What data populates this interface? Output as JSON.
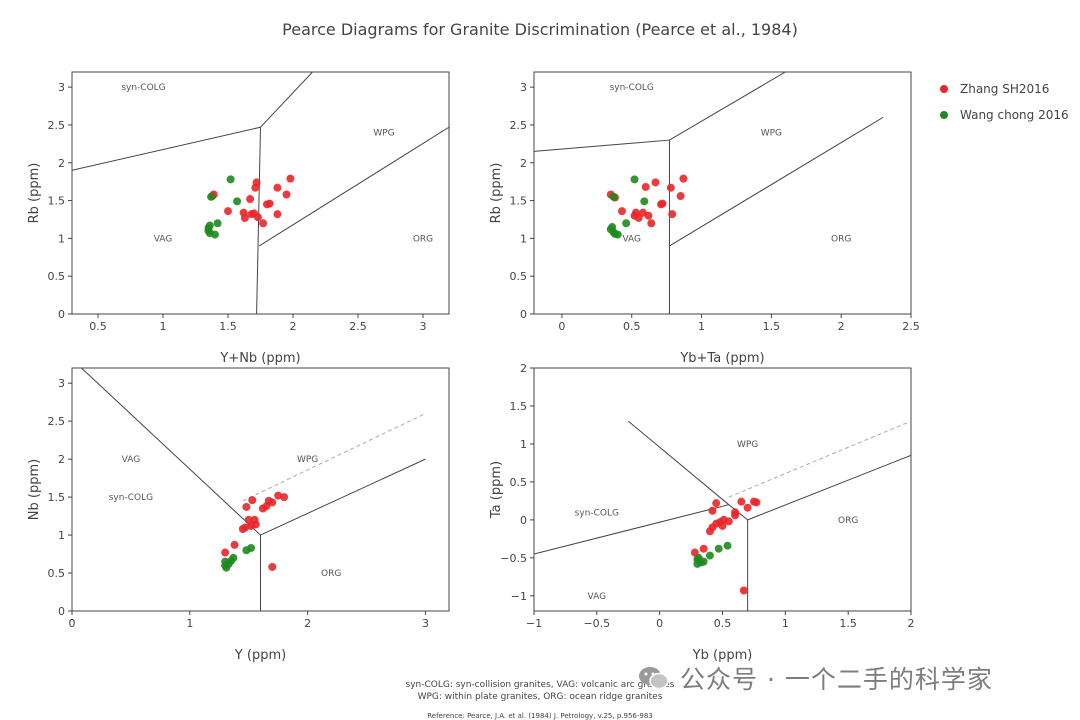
{
  "title": "Pearce Diagrams for Granite Discrimination (Pearce et al., 1984)",
  "legend": [
    {
      "name": "Zhang SH2016",
      "color": "#e8262a"
    },
    {
      "name": "Wang chong 2016",
      "color": "#1e8a1e"
    }
  ],
  "footer": {
    "line1": "syn-COLG: syn-collision granites, VAG: volcanic arc granites",
    "line2": "WPG: within plate granites, ORG: ocean ridge granites",
    "line3": "Reference: Pearce, J.A. et al. (1984) J. Petrology, v.25, p.956-983"
  },
  "watermark": "公众号 · 一个二手的科学家",
  "colors": {
    "series1": "#e8262a",
    "series2": "#1e8a1e",
    "boundary": "#444444",
    "dashed": "#aaaaaa"
  },
  "chart_data": [
    {
      "type": "scatter",
      "xlabel": "Y+Nb (ppm)",
      "ylabel": "Rb (ppm)",
      "xlim": [
        0.3,
        3.2
      ],
      "ylim": [
        0,
        3.2
      ],
      "xticks": [
        0.5,
        1,
        1.5,
        2,
        2.5,
        3
      ],
      "yticks": [
        0,
        0.5,
        1,
        1.5,
        2,
        2.5,
        3
      ],
      "tick_labels_x": [
        "0.5",
        "1",
        "1.5",
        "2",
        "2.5",
        "3"
      ],
      "tick_labels_y": [
        "0",
        "0.5",
        "1",
        "1.5",
        "2",
        "2.5",
        "3"
      ],
      "regions": [
        {
          "label": "syn-COLG",
          "x": 0.85,
          "y": 3.0
        },
        {
          "label": "WPG",
          "x": 2.7,
          "y": 2.4
        },
        {
          "label": "VAG",
          "x": 1.0,
          "y": 1.0
        },
        {
          "label": "ORG",
          "x": 3.0,
          "y": 1.0
        }
      ],
      "boundaries": [
        {
          "points": [
            [
              0.3,
              1.9
            ],
            [
              1.75,
              2.47
            ]
          ],
          "dashed": false
        },
        {
          "points": [
            [
              1.75,
              2.47
            ],
            [
              1.72,
              0
            ]
          ],
          "dashed": false
        },
        {
          "points": [
            [
              1.74,
              0.9
            ],
            [
              3.2,
              2.47
            ]
          ],
          "dashed": false
        },
        {
          "points": [
            [
              1.75,
              2.47
            ],
            [
              2.15,
              3.2
            ]
          ],
          "dashed": false
        }
      ],
      "series": [
        {
          "name": "Zhang SH2016",
          "points": [
            [
              1.38,
              1.56
            ],
            [
              1.39,
              1.58
            ],
            [
              1.5,
              1.36
            ],
            [
              1.62,
              1.34
            ],
            [
              1.63,
              1.27
            ],
            [
              1.67,
              1.52
            ],
            [
              1.68,
              1.32
            ],
            [
              1.7,
              1.33
            ],
            [
              1.71,
              1.67
            ],
            [
              1.72,
              1.74
            ],
            [
              1.73,
              1.28
            ],
            [
              1.77,
              1.2
            ],
            [
              1.8,
              1.45
            ],
            [
              1.82,
              1.46
            ],
            [
              1.88,
              1.67
            ],
            [
              1.88,
              1.32
            ],
            [
              1.95,
              1.58
            ],
            [
              1.98,
              1.79
            ]
          ]
        },
        {
          "name": "Wang chong 2016",
          "points": [
            [
              1.35,
              1.1
            ],
            [
              1.35,
              1.14
            ],
            [
              1.36,
              1.17
            ],
            [
              1.36,
              1.07
            ],
            [
              1.4,
              1.05
            ],
            [
              1.42,
              1.2
            ],
            [
              1.52,
              1.78
            ],
            [
              1.57,
              1.49
            ],
            [
              1.37,
              1.55
            ]
          ]
        }
      ]
    },
    {
      "type": "scatter",
      "xlabel": "Yb+Ta (ppm)",
      "ylabel": "Rb (ppm)",
      "xlim": [
        -0.2,
        2.5
      ],
      "ylim": [
        0,
        3.2
      ],
      "xticks": [
        0,
        0.5,
        1,
        1.5,
        2,
        2.5
      ],
      "yticks": [
        0,
        0.5,
        1,
        1.5,
        2,
        2.5,
        3
      ],
      "tick_labels_x": [
        "0",
        "0.5",
        "1",
        "1.5",
        "2",
        "2.5"
      ],
      "tick_labels_y": [
        "0",
        "0.5",
        "1",
        "1.5",
        "2",
        "2.5",
        "3"
      ],
      "regions": [
        {
          "label": "syn-COLG",
          "x": 0.5,
          "y": 3.0
        },
        {
          "label": "WPG",
          "x": 1.5,
          "y": 2.4
        },
        {
          "label": "VAG",
          "x": 0.5,
          "y": 1.0
        },
        {
          "label": "ORG",
          "x": 2.0,
          "y": 1.0
        }
      ],
      "boundaries": [
        {
          "points": [
            [
              -0.2,
              2.15
            ],
            [
              0.77,
              2.3
            ]
          ],
          "dashed": false
        },
        {
          "points": [
            [
              0.77,
              2.3
            ],
            [
              0.77,
              0
            ]
          ],
          "dashed": false
        },
        {
          "points": [
            [
              0.77,
              0.9
            ],
            [
              2.3,
              2.6
            ]
          ],
          "dashed": false
        },
        {
          "points": [
            [
              0.77,
              2.3
            ],
            [
              1.6,
              3.2
            ]
          ],
          "dashed": false
        }
      ],
      "series": [
        {
          "name": "Zhang SH2016",
          "points": [
            [
              0.35,
              1.58
            ],
            [
              0.38,
              1.54
            ],
            [
              0.43,
              1.36
            ],
            [
              0.52,
              1.3
            ],
            [
              0.53,
              1.34
            ],
            [
              0.55,
              1.27
            ],
            [
              0.58,
              1.34
            ],
            [
              0.6,
              1.68
            ],
            [
              0.62,
              1.3
            ],
            [
              0.64,
              1.2
            ],
            [
              0.67,
              1.74
            ],
            [
              0.71,
              1.45
            ],
            [
              0.72,
              1.46
            ],
            [
              0.78,
              1.67
            ],
            [
              0.79,
              1.32
            ],
            [
              0.85,
              1.56
            ],
            [
              0.87,
              1.79
            ]
          ]
        },
        {
          "name": "Wang chong 2016",
          "points": [
            [
              0.35,
              1.12
            ],
            [
              0.36,
              1.15
            ],
            [
              0.37,
              1.08
            ],
            [
              0.38,
              1.06
            ],
            [
              0.4,
              1.05
            ],
            [
              0.46,
              1.2
            ],
            [
              0.52,
              1.78
            ],
            [
              0.59,
              1.49
            ],
            [
              0.37,
              1.55
            ]
          ]
        }
      ]
    },
    {
      "type": "scatter",
      "xlabel": "Y (ppm)",
      "ylabel": "Nb (ppm)",
      "xlim": [
        0,
        3.2
      ],
      "ylim": [
        0,
        3.2
      ],
      "xticks": [
        0,
        1,
        2,
        3
      ],
      "yticks": [
        0,
        0.5,
        1,
        1.5,
        2,
        2.5,
        3
      ],
      "tick_labels_x": [
        "0",
        "1",
        "2",
        "3"
      ],
      "tick_labels_y": [
        "0",
        "0.5",
        "1",
        "1.5",
        "2",
        "2.5",
        "3"
      ],
      "regions": [
        {
          "label": "VAG",
          "x": 0.5,
          "y": 2.0
        },
        {
          "label": "WPG",
          "x": 2.0,
          "y": 2.0
        },
        {
          "label": "syn-COLG",
          "x": 0.5,
          "y": 1.5
        },
        {
          "label": "ORG",
          "x": 2.2,
          "y": 0.5
        }
      ],
      "boundaries": [
        {
          "points": [
            [
              0.08,
              3.2
            ],
            [
              1.6,
              1.0
            ]
          ],
          "dashed": false
        },
        {
          "points": [
            [
              1.6,
              1.0
            ],
            [
              1.6,
              0
            ]
          ],
          "dashed": false
        },
        {
          "points": [
            [
              1.6,
              1.0
            ],
            [
              3.0,
              2.0
            ]
          ],
          "dashed": false
        },
        {
          "points": [
            [
              1.45,
              1.45
            ],
            [
              3.0,
              2.6
            ]
          ],
          "dashed": true
        }
      ],
      "series": [
        {
          "name": "Zhang SH2016",
          "points": [
            [
              1.3,
              0.77
            ],
            [
              1.38,
              0.87
            ],
            [
              1.45,
              1.08
            ],
            [
              1.47,
              1.1
            ],
            [
              1.48,
              1.37
            ],
            [
              1.5,
              1.2
            ],
            [
              1.52,
              1.12
            ],
            [
              1.53,
              1.46
            ],
            [
              1.55,
              1.2
            ],
            [
              1.56,
              1.14
            ],
            [
              1.62,
              1.35
            ],
            [
              1.65,
              1.38
            ],
            [
              1.67,
              1.45
            ],
            [
              1.7,
              1.43
            ],
            [
              1.75,
              1.52
            ],
            [
              1.8,
              1.5
            ],
            [
              1.7,
              0.58
            ]
          ]
        },
        {
          "name": "Wang chong 2016",
          "points": [
            [
              1.3,
              0.65
            ],
            [
              1.3,
              0.6
            ],
            [
              1.31,
              0.57
            ],
            [
              1.33,
              0.62
            ],
            [
              1.35,
              0.66
            ],
            [
              1.37,
              0.7
            ],
            [
              1.48,
              0.8
            ],
            [
              1.52,
              0.83
            ]
          ]
        }
      ]
    },
    {
      "type": "scatter",
      "xlabel": "Yb (ppm)",
      "ylabel": "Ta (ppm)",
      "xlim": [
        -1,
        2
      ],
      "ylim": [
        -1.2,
        2
      ],
      "xticks": [
        -1,
        -0.5,
        0,
        0.5,
        1,
        1.5,
        2
      ],
      "yticks": [
        -1,
        -0.5,
        0,
        0.5,
        1,
        1.5,
        2
      ],
      "tick_labels_x": [
        "−1",
        "−0.5",
        "0",
        "0.5",
        "1",
        "1.5",
        "2"
      ],
      "tick_labels_y": [
        "−1",
        "−0.5",
        "0",
        "0.5",
        "1",
        "1.5",
        "2"
      ],
      "regions": [
        {
          "label": "WPG",
          "x": 0.7,
          "y": 1.0
        },
        {
          "label": "syn-COLG",
          "x": -0.5,
          "y": 0.1
        },
        {
          "label": "ORG",
          "x": 1.5,
          "y": 0.0
        },
        {
          "label": "VAG",
          "x": -0.5,
          "y": -1.0
        }
      ],
      "boundaries": [
        {
          "points": [
            [
              -0.25,
              1.3
            ],
            [
              0.55,
              0.2
            ]
          ],
          "dashed": false
        },
        {
          "points": [
            [
              -1,
              -0.45
            ],
            [
              0.55,
              0.2
            ]
          ],
          "dashed": false
        },
        {
          "points": [
            [
              0.55,
              0.2
            ],
            [
              0.7,
              0.0
            ]
          ],
          "dashed": false
        },
        {
          "points": [
            [
              0.7,
              0.0
            ],
            [
              0.7,
              -1.2
            ]
          ],
          "dashed": false
        },
        {
          "points": [
            [
              0.7,
              0.0
            ],
            [
              2.0,
              0.85
            ]
          ],
          "dashed": false
        },
        {
          "points": [
            [
              0.55,
              0.3
            ],
            [
              2.0,
              1.3
            ]
          ],
          "dashed": true
        }
      ],
      "series": [
        {
          "name": "Zhang SH2016",
          "points": [
            [
              0.28,
              -0.43
            ],
            [
              0.35,
              -0.38
            ],
            [
              0.4,
              -0.15
            ],
            [
              0.42,
              -0.1
            ],
            [
              0.42,
              0.12
            ],
            [
              0.45,
              0.22
            ],
            [
              0.45,
              -0.05
            ],
            [
              0.48,
              -0.03
            ],
            [
              0.5,
              -0.08
            ],
            [
              0.51,
              0.0
            ],
            [
              0.55,
              -0.02
            ],
            [
              0.6,
              0.1
            ],
            [
              0.6,
              0.06
            ],
            [
              0.65,
              0.24
            ],
            [
              0.7,
              0.16
            ],
            [
              0.75,
              0.24
            ],
            [
              0.77,
              0.23
            ],
            [
              0.67,
              -0.93
            ]
          ]
        },
        {
          "name": "Wang chong 2016",
          "points": [
            [
              0.3,
              -0.52
            ],
            [
              0.3,
              -0.58
            ],
            [
              0.31,
              -0.5
            ],
            [
              0.33,
              -0.56
            ],
            [
              0.35,
              -0.55
            ],
            [
              0.4,
              -0.47
            ],
            [
              0.47,
              -0.38
            ],
            [
              0.54,
              -0.34
            ]
          ]
        }
      ]
    }
  ]
}
